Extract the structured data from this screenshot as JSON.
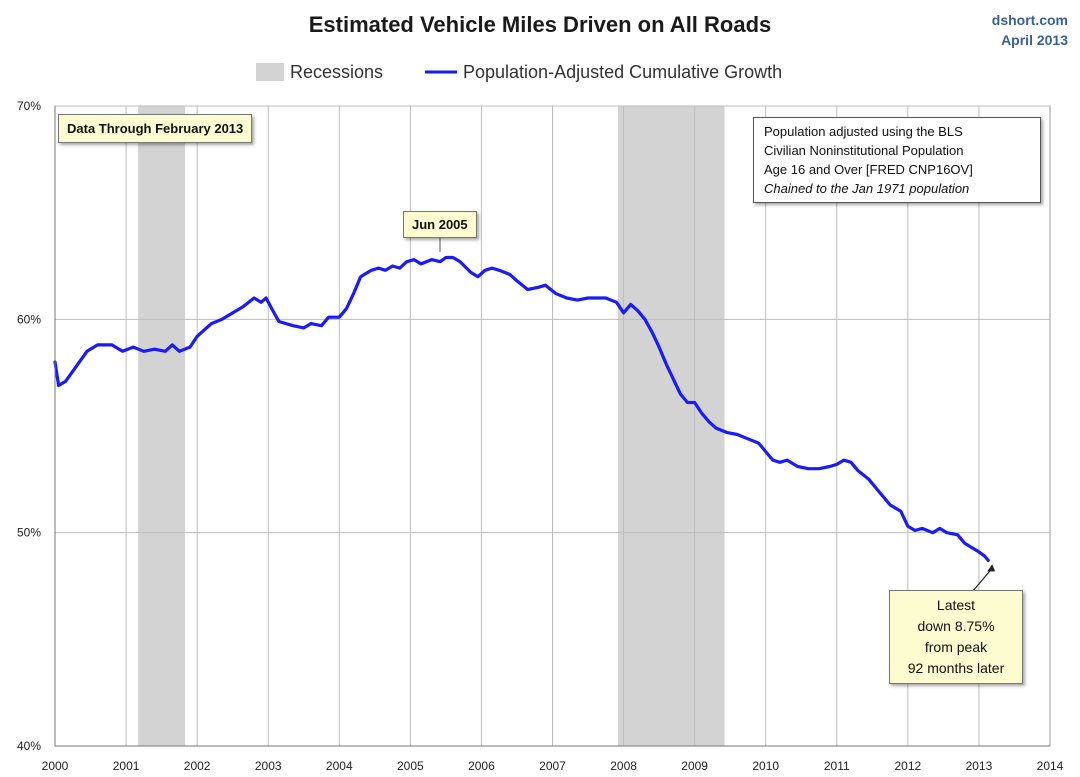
{
  "header": {
    "title": "Estimated Vehicle Miles Driven on All Roads",
    "credit_site": "dshort.com",
    "credit_date": "April 2013"
  },
  "legend": {
    "recession_label": "Recessions",
    "series_label": "Population-Adjusted Cumulative Growth",
    "placement": "top-center"
  },
  "colors": {
    "series": "#1a1aff",
    "recession": "#d3d3d3",
    "grid": "#bdbdbd",
    "note_bg": "#fdfbd0"
  },
  "annotations": {
    "data_through": "Data Through February 2013",
    "peak_label": "Jun 2005",
    "method_lines": [
      "Population adjusted using the BLS",
      "Civilian Noninstitutional Population",
      "Age 16 and Over  [FRED CNP16OV]",
      "Chained to the Jan 1971 population"
    ],
    "latest_lines": [
      "Latest",
      "down 8.75%",
      "from peak",
      "92 months later"
    ]
  },
  "chart_data": {
    "type": "line",
    "title": "Estimated Vehicle Miles Driven on All Roads",
    "xlabel": "",
    "ylabel": "",
    "xlim": [
      2000,
      2014
    ],
    "ylim": [
      40,
      70
    ],
    "x_ticks": [
      "2000",
      "2001",
      "2002",
      "2003",
      "2004",
      "2005",
      "2006",
      "2007",
      "2008",
      "2009",
      "2010",
      "2011",
      "2012",
      "2013",
      "2014"
    ],
    "y_ticks": [
      "40%",
      "50%",
      "60%",
      "70%"
    ],
    "grid": true,
    "recessions": [
      [
        2001.17,
        2001.83
      ],
      [
        2007.92,
        2009.42
      ]
    ],
    "series": [
      {
        "name": "Population-Adjusted Cumulative Growth",
        "points": [
          [
            2000.0,
            58.0
          ],
          [
            2000.05,
            56.9
          ],
          [
            2000.15,
            57.1
          ],
          [
            2000.3,
            57.8
          ],
          [
            2000.45,
            58.5
          ],
          [
            2000.6,
            58.8
          ],
          [
            2000.8,
            58.8
          ],
          [
            2000.95,
            58.5
          ],
          [
            2001.1,
            58.7
          ],
          [
            2001.25,
            58.5
          ],
          [
            2001.4,
            58.6
          ],
          [
            2001.55,
            58.5
          ],
          [
            2001.65,
            58.8
          ],
          [
            2001.75,
            58.5
          ],
          [
            2001.9,
            58.7
          ],
          [
            2002.0,
            59.2
          ],
          [
            2002.1,
            59.5
          ],
          [
            2002.2,
            59.8
          ],
          [
            2002.35,
            60.0
          ],
          [
            2002.5,
            60.3
          ],
          [
            2002.65,
            60.6
          ],
          [
            2002.8,
            61.0
          ],
          [
            2002.9,
            60.8
          ],
          [
            2002.97,
            61.0
          ],
          [
            2003.05,
            60.5
          ],
          [
            2003.15,
            59.9
          ],
          [
            2003.35,
            59.7
          ],
          [
            2003.5,
            59.6
          ],
          [
            2003.6,
            59.8
          ],
          [
            2003.75,
            59.7
          ],
          [
            2003.85,
            60.1
          ],
          [
            2004.0,
            60.1
          ],
          [
            2004.1,
            60.5
          ],
          [
            2004.2,
            61.2
          ],
          [
            2004.3,
            62.0
          ],
          [
            2004.45,
            62.3
          ],
          [
            2004.55,
            62.4
          ],
          [
            2004.65,
            62.3
          ],
          [
            2004.75,
            62.5
          ],
          [
            2004.85,
            62.4
          ],
          [
            2004.95,
            62.7
          ],
          [
            2005.05,
            62.8
          ],
          [
            2005.15,
            62.6
          ],
          [
            2005.3,
            62.8
          ],
          [
            2005.42,
            62.7
          ],
          [
            2005.5,
            62.9
          ],
          [
            2005.6,
            62.9
          ],
          [
            2005.7,
            62.7
          ],
          [
            2005.85,
            62.2
          ],
          [
            2005.95,
            62.0
          ],
          [
            2006.05,
            62.3
          ],
          [
            2006.15,
            62.4
          ],
          [
            2006.25,
            62.3
          ],
          [
            2006.4,
            62.1
          ],
          [
            2006.5,
            61.8
          ],
          [
            2006.65,
            61.4
          ],
          [
            2006.8,
            61.5
          ],
          [
            2006.9,
            61.6
          ],
          [
            2007.05,
            61.2
          ],
          [
            2007.2,
            61.0
          ],
          [
            2007.35,
            60.9
          ],
          [
            2007.5,
            61.0
          ],
          [
            2007.6,
            61.0
          ],
          [
            2007.75,
            61.0
          ],
          [
            2007.9,
            60.8
          ],
          [
            2008.0,
            60.3
          ],
          [
            2008.1,
            60.7
          ],
          [
            2008.2,
            60.4
          ],
          [
            2008.3,
            60.0
          ],
          [
            2008.4,
            59.4
          ],
          [
            2008.5,
            58.7
          ],
          [
            2008.6,
            57.9
          ],
          [
            2008.7,
            57.2
          ],
          [
            2008.8,
            56.5
          ],
          [
            2008.9,
            56.1
          ],
          [
            2009.0,
            56.1
          ],
          [
            2009.1,
            55.6
          ],
          [
            2009.2,
            55.2
          ],
          [
            2009.3,
            54.9
          ],
          [
            2009.45,
            54.7
          ],
          [
            2009.6,
            54.6
          ],
          [
            2009.75,
            54.4
          ],
          [
            2009.9,
            54.2
          ],
          [
            2010.0,
            53.8
          ],
          [
            2010.1,
            53.4
          ],
          [
            2010.2,
            53.3
          ],
          [
            2010.3,
            53.4
          ],
          [
            2010.45,
            53.1
          ],
          [
            2010.6,
            53.0
          ],
          [
            2010.75,
            53.0
          ],
          [
            2010.9,
            53.1
          ],
          [
            2011.0,
            53.2
          ],
          [
            2011.1,
            53.4
          ],
          [
            2011.2,
            53.3
          ],
          [
            2011.3,
            52.9
          ],
          [
            2011.45,
            52.5
          ],
          [
            2011.6,
            51.9
          ],
          [
            2011.75,
            51.3
          ],
          [
            2011.9,
            51.0
          ],
          [
            2012.0,
            50.3
          ],
          [
            2012.1,
            50.1
          ],
          [
            2012.2,
            50.2
          ],
          [
            2012.35,
            50.0
          ],
          [
            2012.45,
            50.2
          ],
          [
            2012.55,
            50.0
          ],
          [
            2012.7,
            49.9
          ],
          [
            2012.8,
            49.5
          ],
          [
            2012.9,
            49.3
          ],
          [
            2013.0,
            49.1
          ],
          [
            2013.08,
            48.9
          ],
          [
            2013.13,
            48.7
          ]
        ]
      }
    ]
  }
}
